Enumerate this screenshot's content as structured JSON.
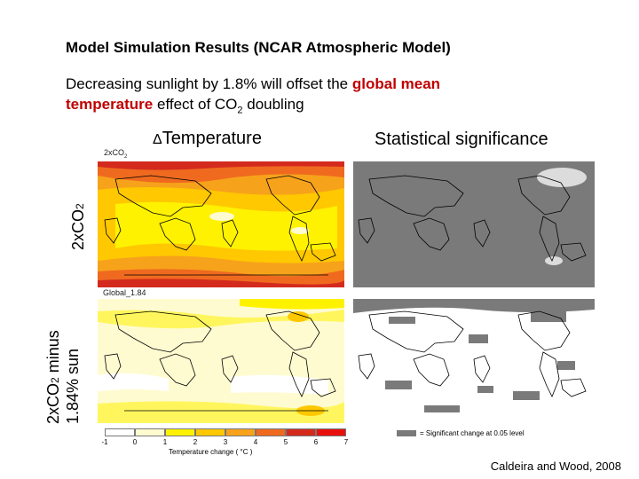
{
  "slide": {
    "title": "Model Simulation Results (NCAR Atmospheric Model)",
    "subtitle_start": "Decreasing sunlight by 1.8% will offset the ",
    "subtitle_highlight1": "global mean",
    "subtitle_highlight2": "temperature",
    "subtitle_mid": " effect of CO",
    "subtitle_sub": "2",
    "subtitle_end": " doubling",
    "credit": "Caldeira and Wood, 2008",
    "highlight_color": "#c00000"
  },
  "columns": {
    "left_delta": "Δ",
    "left": "Temperature",
    "right": "Statistical significance"
  },
  "rows": {
    "top_prefix": "2xCO",
    "top_sub": "2",
    "bottom_line1_prefix": "2xCO",
    "bottom_line1_sub": "2",
    "bottom_line1_suffix": " minus",
    "bottom_line2": "1.84% sun"
  },
  "maps": {
    "top_left_caption_prefix": "2xCO",
    "top_left_caption_sub": "2",
    "bottom_left_caption": "Global_1.84"
  },
  "colorbar": {
    "ticks": [
      "-1",
      "0",
      "1",
      "2",
      "3",
      "4",
      "5",
      "6",
      "7"
    ],
    "colors": [
      "#ffffff",
      "#fffbd0",
      "#fff200",
      "#ffc800",
      "#f7a21b",
      "#ef6a1f",
      "#d42a1e",
      "#e8100c"
    ],
    "label": "Temperature change ( °C )"
  },
  "legend": {
    "text": "= Significant change at 0.05 level",
    "swatch_color": "#7a7a7a"
  }
}
